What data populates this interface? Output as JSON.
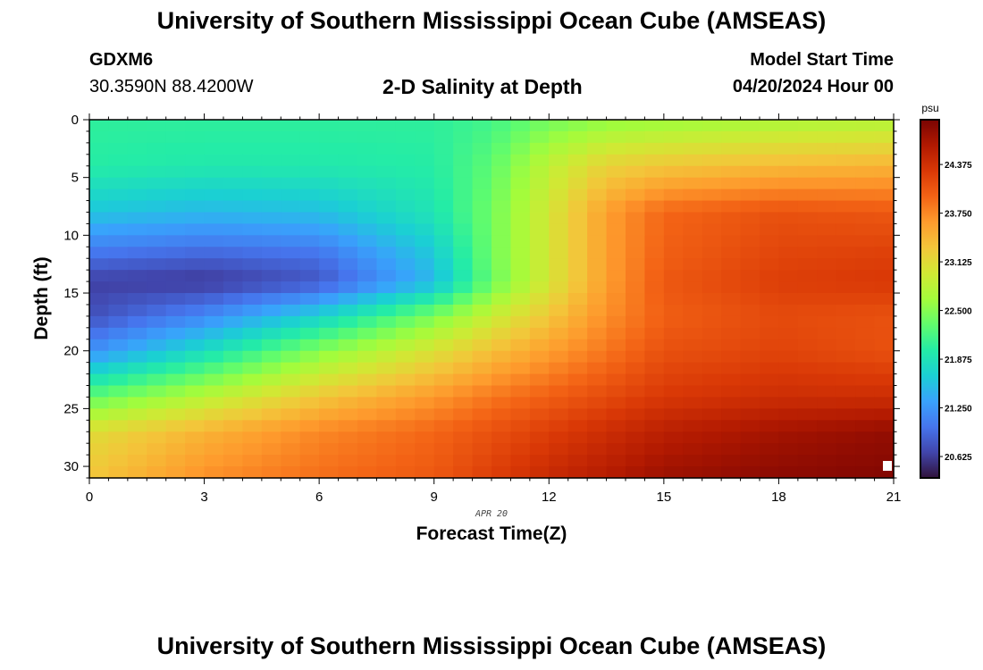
{
  "header": {
    "title": "University of Southern Mississippi Ocean Cube (AMSEAS)",
    "station": "GDXM6",
    "coords": "30.3590N  88.4200W",
    "subtitle": "2-D Salinity at Depth",
    "start_label": "Model Start Time",
    "start_date": "04/20/2024 Hour 00"
  },
  "footer": {
    "title": "University of Southern Mississippi Ocean Cube (AMSEAS)"
  },
  "colors": {
    "scale": [
      "#30123b",
      "#4145ab",
      "#4675ed",
      "#39a2fc",
      "#1bcfd4",
      "#24eca6",
      "#61fc6c",
      "#a4fc3b",
      "#d1e834",
      "#f3c63a",
      "#fe9b2d",
      "#f36315",
      "#d93806",
      "#b11901",
      "#7a0402"
    ]
  },
  "chart_data": {
    "type": "heatmap",
    "title": "2-D Salinity at Depth",
    "xlabel": "Forecast Time(Z)",
    "ylabel": "Depth (ft)",
    "x_annotation": "APR 20",
    "xlim": [
      0,
      21
    ],
    "ylim": [
      0,
      31
    ],
    "xticks": [
      0,
      3,
      6,
      9,
      12,
      15,
      18,
      21
    ],
    "yticks": [
      0,
      5,
      10,
      15,
      20,
      25,
      30
    ],
    "colorbar": {
      "unit": "psu",
      "min": 20.35,
      "max": 24.95,
      "ticks": [
        "24.375",
        "23.750",
        "23.125",
        "22.500",
        "21.875",
        "21.250",
        "20.625"
      ]
    },
    "x_nodes": [
      0,
      3,
      6,
      9,
      10.5,
      12,
      13.5,
      15,
      18,
      21
    ],
    "y_nodes": [
      0,
      4,
      8,
      12,
      14,
      17,
      20,
      24,
      27,
      31
    ],
    "salinity_grid": [
      [
        22.05,
        22.05,
        22.05,
        22.05,
        22.15,
        22.4,
        22.55,
        22.6,
        22.7,
        22.75
      ],
      [
        22.0,
        21.95,
        21.95,
        22.0,
        22.3,
        22.85,
        23.2,
        23.3,
        23.4,
        23.45
      ],
      [
        21.6,
        21.5,
        21.55,
        21.9,
        22.4,
        23.0,
        23.6,
        23.95,
        24.1,
        24.05
      ],
      [
        20.95,
        20.85,
        20.95,
        21.6,
        22.4,
        23.0,
        23.6,
        24.0,
        24.2,
        24.25
      ],
      [
        20.65,
        20.6,
        20.8,
        21.5,
        22.35,
        23.0,
        23.6,
        24.05,
        24.25,
        24.3
      ],
      [
        20.75,
        21.15,
        21.7,
        22.45,
        22.9,
        23.3,
        23.7,
        24.0,
        24.15,
        24.1
      ],
      [
        21.2,
        21.8,
        22.5,
        23.05,
        23.35,
        23.6,
        23.85,
        24.1,
        24.2,
        24.1
      ],
      [
        22.3,
        22.8,
        23.3,
        23.65,
        23.85,
        24.0,
        24.15,
        24.3,
        24.4,
        24.4
      ],
      [
        23.1,
        23.45,
        23.75,
        23.95,
        24.1,
        24.25,
        24.4,
        24.55,
        24.7,
        24.8
      ],
      [
        23.3,
        23.7,
        23.9,
        24.05,
        24.25,
        24.45,
        24.6,
        24.75,
        24.85,
        24.9
      ]
    ]
  }
}
